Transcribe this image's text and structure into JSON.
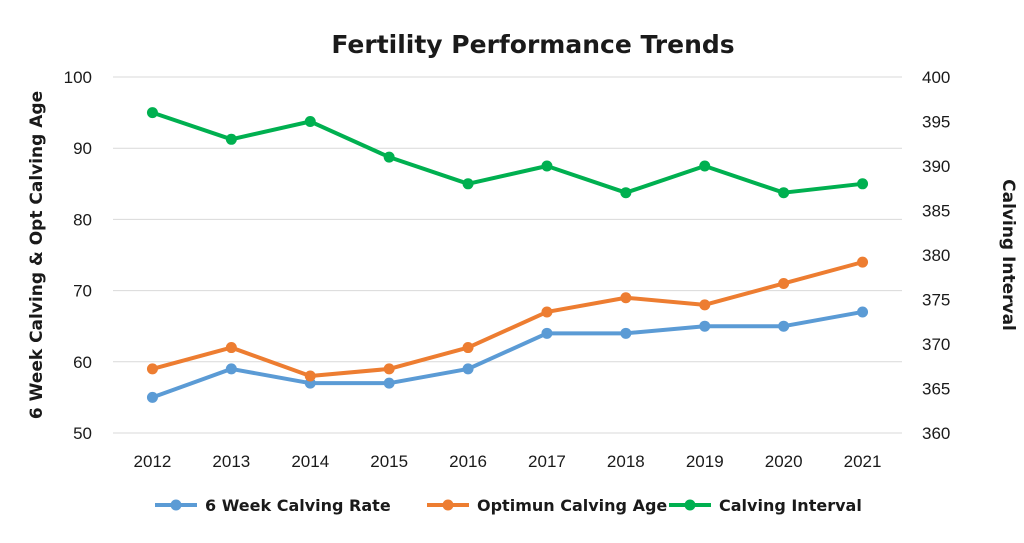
{
  "chart_data": {
    "type": "line",
    "title": "Fertility Performance Trends",
    "xlabel": "",
    "ylabel": "6 Week Calving & Opt Calving Age",
    "y2label": "Calving Interval",
    "categories": [
      "2012",
      "2013",
      "2014",
      "2015",
      "2016",
      "2017",
      "2018",
      "2019",
      "2020",
      "2021"
    ],
    "ylim": [
      50,
      100
    ],
    "yticks": [
      50,
      60,
      70,
      80,
      90,
      100
    ],
    "y2lim": [
      360,
      400
    ],
    "y2ticks": [
      360,
      365,
      370,
      375,
      380,
      385,
      390,
      395,
      400
    ],
    "grid": true,
    "legend_position": "bottom",
    "series": [
      {
        "name": "6 Week Calving Rate",
        "axis": "left",
        "color": "#5b9bd5",
        "values": [
          55,
          59,
          57,
          57,
          59,
          64,
          64,
          65,
          65,
          67
        ]
      },
      {
        "name": "Optimun Calving Age",
        "axis": "left",
        "color": "#ed7d31",
        "values": [
          59,
          62,
          58,
          59,
          62,
          67,
          69,
          68,
          71,
          74
        ]
      },
      {
        "name": "Calving Interval",
        "axis": "right",
        "color": "#00b050",
        "values": [
          396,
          393,
          395,
          391,
          388,
          390,
          387,
          390,
          387,
          388
        ]
      }
    ]
  }
}
